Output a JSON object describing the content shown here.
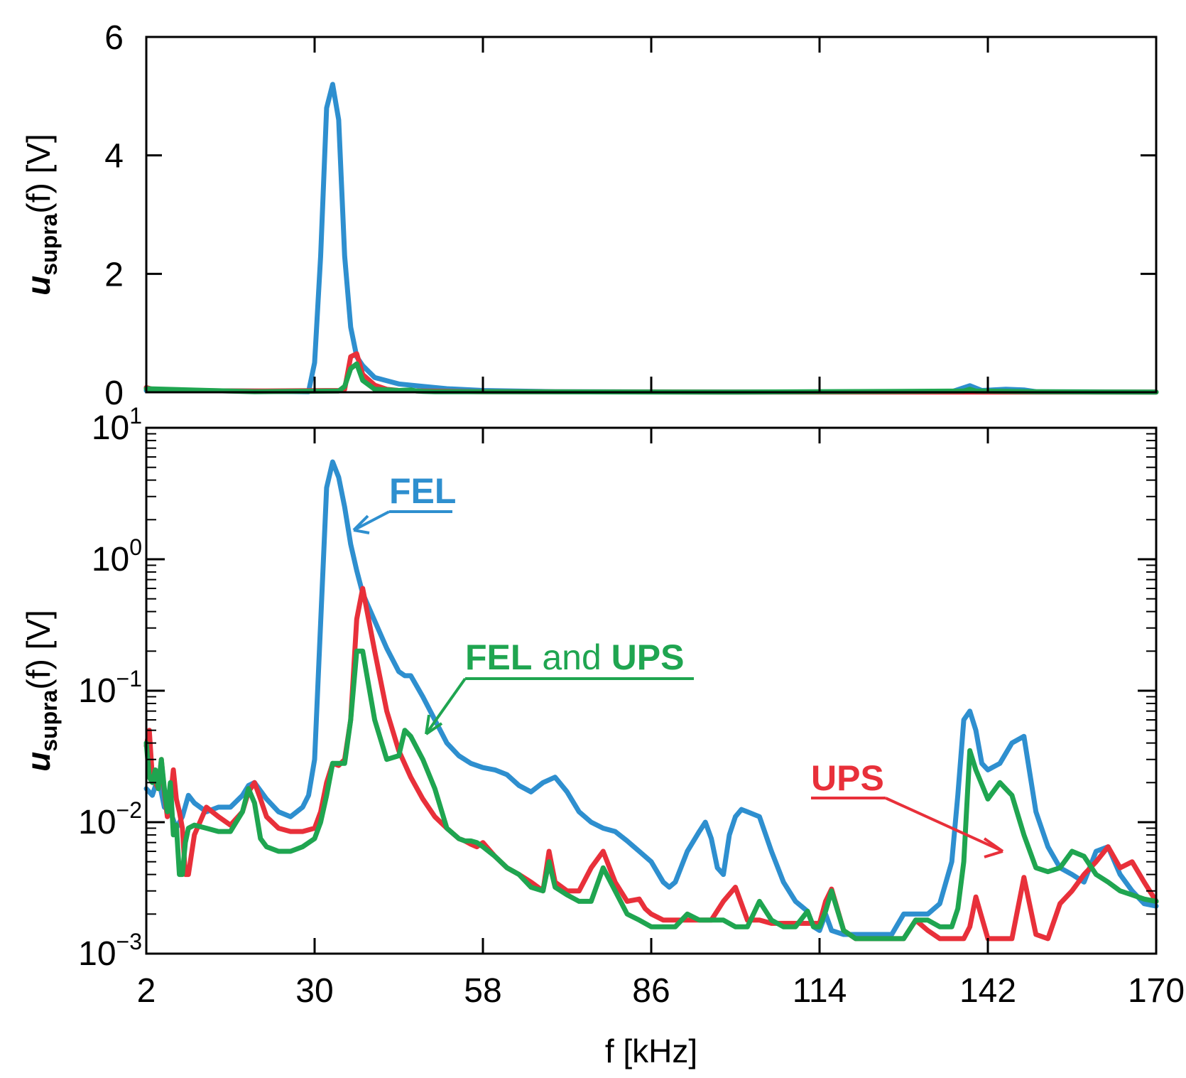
{
  "chart_data": [
    {
      "type": "line",
      "scale": "linear",
      "xlabel": "f [kHz]",
      "ylabel": "usupra(f) [V]",
      "ylabel_parts": {
        "main": "u",
        "sub": "supra",
        "rest": "(f) [V]"
      },
      "xlim": [
        2,
        170
      ],
      "ylim": [
        0,
        6
      ],
      "x_ticks": [
        2,
        30,
        58,
        86,
        114,
        142,
        170
      ],
      "x_tick_labels": [
        "2",
        "30",
        "58",
        "86",
        "114",
        "142",
        "170"
      ],
      "y_ticks": [
        0,
        2,
        4,
        6
      ],
      "y_tick_labels": [
        "0",
        "2",
        "4",
        "6"
      ],
      "series": [
        {
          "name": "FEL",
          "color": "#2e8fcf",
          "x": [
            2,
            20,
            29,
            30,
            31,
            32,
            33,
            34,
            35,
            36,
            37,
            38,
            40,
            44,
            48,
            52,
            58,
            70,
            100,
            136,
            139,
            141,
            145,
            148,
            150,
            170
          ],
          "y": [
            0.03,
            0.02,
            0.01,
            0.5,
            2.3,
            4.8,
            5.2,
            4.6,
            2.3,
            1.1,
            0.6,
            0.45,
            0.25,
            0.14,
            0.1,
            0.06,
            0.03,
            0.01,
            0.005,
            0.01,
            0.11,
            0.03,
            0.05,
            0.04,
            0.01,
            0.003
          ]
        },
        {
          "name": "UPS",
          "color": "#e8303a",
          "x": [
            2,
            3,
            4,
            20,
            34,
            35,
            36,
            37,
            38,
            40,
            42,
            44,
            48,
            58,
            100,
            170
          ],
          "y": [
            0.08,
            0.05,
            0.03,
            0.02,
            0.03,
            0.05,
            0.6,
            0.65,
            0.3,
            0.12,
            0.05,
            0.03,
            0.02,
            0.01,
            0.003,
            0.003
          ]
        },
        {
          "name": "FEL and UPS",
          "color": "#1fa550",
          "x": [
            2,
            20,
            34,
            35,
            36,
            37,
            38,
            40,
            44,
            46,
            47,
            48,
            50,
            58,
            100,
            138,
            139,
            140,
            150,
            160,
            170
          ],
          "y": [
            0.06,
            0.01,
            0.02,
            0.1,
            0.4,
            0.48,
            0.2,
            0.05,
            0.03,
            0.04,
            0.02,
            0.015,
            0.01,
            0.008,
            0.003,
            0.02,
            0.05,
            0.02,
            0.01,
            0.005,
            0.003
          ]
        }
      ]
    },
    {
      "type": "line",
      "scale": "log",
      "xlabel": "f [kHz]",
      "ylabel": "usupra(f) [V]",
      "ylabel_parts": {
        "main": "u",
        "sub": "supra",
        "rest": "(f) [V]"
      },
      "xlim": [
        2,
        170
      ],
      "ylim": [
        0.001,
        10
      ],
      "x_ticks": [
        2,
        30,
        58,
        86,
        114,
        142,
        170
      ],
      "x_tick_labels": [
        "2",
        "30",
        "58",
        "86",
        "114",
        "142",
        "170"
      ],
      "y_ticks": [
        0.001,
        0.01,
        0.1,
        1,
        10
      ],
      "y_tick_labels": [
        {
          "base": "10",
          "exp": "−3"
        },
        {
          "base": "10",
          "exp": "−2"
        },
        {
          "base": "10",
          "exp": "−1"
        },
        {
          "base": "10",
          "exp": "0"
        },
        {
          "base": "10",
          "exp": "1"
        }
      ],
      "annotations": [
        {
          "text": "FEL",
          "color": "#2e8fcf"
        },
        {
          "text": "UPS",
          "color": "#e8303a"
        },
        {
          "text_parts": [
            "FEL",
            " and ",
            "UPS"
          ],
          "colors": [
            "#1fa550",
            "#1fa550",
            "#1fa550"
          ]
        }
      ],
      "series": [
        {
          "name": "FEL",
          "color": "#2e8fcf",
          "x": [
            2,
            3,
            4,
            5,
            6,
            7,
            8,
            9,
            10,
            12,
            14,
            16,
            18,
            19,
            20,
            22,
            24,
            26,
            28,
            29,
            30,
            31,
            32,
            33,
            34,
            35,
            36,
            37,
            38,
            40,
            42,
            44,
            45,
            46,
            48,
            50,
            52,
            54,
            56,
            58,
            60,
            62,
            64,
            66,
            68,
            70,
            72,
            74,
            76,
            78,
            80,
            82,
            84,
            86,
            88,
            89,
            90,
            92,
            94,
            95,
            96,
            97,
            98,
            99,
            100,
            101,
            102,
            104,
            106,
            108,
            110,
            112,
            113,
            114,
            115,
            116,
            118,
            120,
            122,
            124,
            126,
            128,
            130,
            132,
            134,
            136,
            137,
            138,
            139,
            140,
            141,
            142,
            144,
            146,
            148,
            150,
            152,
            154,
            156,
            158,
            160,
            162,
            164,
            166,
            168,
            170
          ],
          "y": [
            0.018,
            0.016,
            0.022,
            0.013,
            0.012,
            0.009,
            0.011,
            0.016,
            0.014,
            0.012,
            0.013,
            0.013,
            0.016,
            0.019,
            0.02,
            0.015,
            0.012,
            0.011,
            0.013,
            0.016,
            0.03,
            0.33,
            3.5,
            5.5,
            4.2,
            2.5,
            1.3,
            0.82,
            0.55,
            0.34,
            0.21,
            0.14,
            0.13,
            0.13,
            0.09,
            0.06,
            0.04,
            0.032,
            0.028,
            0.026,
            0.025,
            0.023,
            0.019,
            0.017,
            0.02,
            0.022,
            0.017,
            0.012,
            0.01,
            0.009,
            0.0085,
            0.0072,
            0.006,
            0.005,
            0.0035,
            0.0032,
            0.0035,
            0.006,
            0.0085,
            0.01,
            0.0075,
            0.0045,
            0.004,
            0.008,
            0.011,
            0.0125,
            0.012,
            0.011,
            0.006,
            0.0035,
            0.0025,
            0.0021,
            0.0016,
            0.0015,
            0.002,
            0.0015,
            0.0014,
            0.0014,
            0.0014,
            0.0014,
            0.0014,
            0.002,
            0.002,
            0.002,
            0.0024,
            0.005,
            0.016,
            0.06,
            0.07,
            0.05,
            0.028,
            0.025,
            0.028,
            0.04,
            0.045,
            0.012,
            0.0065,
            0.0045,
            0.004,
            0.0035,
            0.006,
            0.0065,
            0.004,
            0.003,
            0.0024,
            0.0023
          ]
        },
        {
          "name": "UPS",
          "color": "#e8303a",
          "x": [
            2,
            2.5,
            3,
            3.5,
            4,
            4.5,
            5,
            5.5,
            6,
            6.5,
            7,
            7.5,
            8,
            8.5,
            9,
            10,
            12,
            14,
            16,
            18,
            19,
            20,
            21,
            22,
            24,
            26,
            28,
            30,
            31,
            32,
            33,
            34,
            35,
            36,
            37,
            38,
            40,
            42,
            44,
            46,
            48,
            50,
            52,
            54,
            55,
            56,
            57,
            58,
            60,
            62,
            64,
            66,
            68,
            69,
            70,
            72,
            74,
            76,
            78,
            80,
            82,
            84,
            85,
            86,
            88,
            90,
            92,
            94,
            96,
            98,
            100,
            102,
            104,
            106,
            108,
            110,
            112,
            113,
            114,
            115,
            116,
            118,
            120,
            122,
            124,
            126,
            128,
            130,
            132,
            134,
            136,
            137,
            138,
            139,
            140,
            142,
            144,
            145,
            146,
            148,
            150,
            152,
            154,
            156,
            158,
            160,
            162,
            164,
            166,
            168,
            170
          ],
          "y": [
            0.038,
            0.05,
            0.022,
            0.02,
            0.018,
            0.03,
            0.017,
            0.011,
            0.015,
            0.025,
            0.015,
            0.012,
            0.009,
            0.004,
            0.004,
            0.008,
            0.013,
            0.011,
            0.0095,
            0.012,
            0.017,
            0.02,
            0.015,
            0.011,
            0.009,
            0.0085,
            0.0085,
            0.009,
            0.012,
            0.02,
            0.028,
            0.027,
            0.03,
            0.06,
            0.35,
            0.6,
            0.2,
            0.07,
            0.035,
            0.022,
            0.015,
            0.011,
            0.009,
            0.0075,
            0.0072,
            0.0068,
            0.0065,
            0.007,
            0.0055,
            0.0045,
            0.004,
            0.0035,
            0.003,
            0.006,
            0.0035,
            0.003,
            0.003,
            0.0045,
            0.006,
            0.0035,
            0.0025,
            0.0026,
            0.0022,
            0.002,
            0.0018,
            0.0018,
            0.0018,
            0.0018,
            0.0018,
            0.0025,
            0.0032,
            0.0018,
            0.0018,
            0.0017,
            0.0017,
            0.0017,
            0.0017,
            0.0017,
            0.0017,
            0.0025,
            0.0031,
            0.0015,
            0.0013,
            0.0013,
            0.0013,
            0.0013,
            0.0013,
            0.0018,
            0.0015,
            0.0013,
            0.0013,
            0.0013,
            0.0013,
            0.0016,
            0.0027,
            0.0013,
            0.0013,
            0.0013,
            0.0013,
            0.0038,
            0.0014,
            0.0013,
            0.0024,
            0.003,
            0.004,
            0.005,
            0.0065,
            0.0045,
            0.005,
            0.0035,
            0.0025
          ]
        },
        {
          "name": "FEL and UPS",
          "color": "#1fa550",
          "x": [
            2,
            2.5,
            3,
            3.5,
            4,
            4.5,
            5,
            5.5,
            6,
            6.5,
            7,
            7.5,
            8,
            8.5,
            9,
            10,
            12,
            14,
            16,
            18,
            19,
            20,
            21,
            22,
            24,
            26,
            28,
            30,
            31,
            32,
            33,
            34,
            35,
            36,
            37,
            38,
            40,
            42,
            44,
            45,
            46,
            48,
            50,
            52,
            54,
            55,
            56,
            57,
            58,
            60,
            62,
            64,
            66,
            68,
            69,
            70,
            72,
            74,
            76,
            78,
            80,
            82,
            84,
            86,
            88,
            90,
            92,
            94,
            96,
            98,
            100,
            102,
            104,
            106,
            108,
            110,
            112,
            113,
            114,
            115,
            116,
            118,
            120,
            122,
            124,
            126,
            128,
            130,
            132,
            134,
            136,
            137,
            138,
            139,
            140,
            142,
            144,
            146,
            148,
            150,
            152,
            154,
            156,
            158,
            160,
            162,
            164,
            166,
            168,
            170
          ],
          "y": [
            0.04,
            0.022,
            0.02,
            0.025,
            0.018,
            0.03,
            0.018,
            0.012,
            0.02,
            0.008,
            0.0095,
            0.004,
            0.004,
            0.007,
            0.009,
            0.0095,
            0.009,
            0.0085,
            0.0085,
            0.012,
            0.018,
            0.014,
            0.0075,
            0.0065,
            0.006,
            0.006,
            0.0065,
            0.0075,
            0.01,
            0.016,
            0.028,
            0.028,
            0.028,
            0.06,
            0.2,
            0.2,
            0.06,
            0.03,
            0.032,
            0.05,
            0.045,
            0.03,
            0.018,
            0.009,
            0.0075,
            0.0072,
            0.0072,
            0.007,
            0.0065,
            0.0055,
            0.0045,
            0.004,
            0.0032,
            0.003,
            0.005,
            0.0032,
            0.0028,
            0.0025,
            0.0025,
            0.0045,
            0.003,
            0.002,
            0.0018,
            0.0016,
            0.0016,
            0.0016,
            0.002,
            0.0018,
            0.0018,
            0.0018,
            0.0016,
            0.0016,
            0.0025,
            0.0018,
            0.0016,
            0.0016,
            0.0021,
            0.0016,
            0.0016,
            0.0021,
            0.003,
            0.0015,
            0.0013,
            0.0013,
            0.0013,
            0.0013,
            0.0013,
            0.0018,
            0.0018,
            0.0016,
            0.0016,
            0.0022,
            0.005,
            0.035,
            0.025,
            0.015,
            0.02,
            0.016,
            0.008,
            0.0045,
            0.0042,
            0.0045,
            0.006,
            0.0055,
            0.004,
            0.0035,
            0.003,
            0.0028,
            0.0026,
            0.0025
          ]
        }
      ]
    }
  ]
}
